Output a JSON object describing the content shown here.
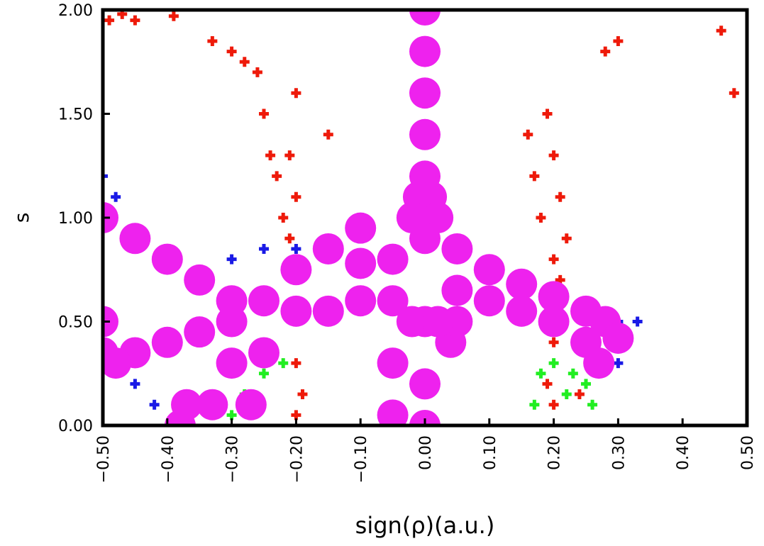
{
  "chart_data": {
    "type": "scatter",
    "xlabel": "sign(ρ)(a.u.)",
    "ylabel": "s",
    "xlim": [
      -0.5,
      0.5
    ],
    "ylim": [
      0,
      2
    ],
    "xticks": [
      {
        "value": -0.5,
        "label": "−0.50"
      },
      {
        "value": -0.4,
        "label": "−0.40"
      },
      {
        "value": -0.3,
        "label": "−0.30"
      },
      {
        "value": -0.2,
        "label": "−0.20"
      },
      {
        "value": -0.1,
        "label": "−0.10"
      },
      {
        "value": 0,
        "label": "0.00"
      },
      {
        "value": 0.1,
        "label": "0.10"
      },
      {
        "value": 0.2,
        "label": "0.20"
      },
      {
        "value": 0.3,
        "label": "0.30"
      },
      {
        "value": 0.4,
        "label": "0.40"
      },
      {
        "value": 0.5,
        "label": "0.50"
      }
    ],
    "yticks": [
      {
        "value": 0,
        "label": "0.00"
      },
      {
        "value": 0.5,
        "label": "0.50"
      },
      {
        "value": 1,
        "label": "1.00"
      },
      {
        "value": 1.5,
        "label": "1.50"
      },
      {
        "value": 2,
        "label": "2.00"
      }
    ],
    "series": [
      {
        "color": "#1a1ae6",
        "marker": "cross",
        "x": [
          -0.5,
          -0.48,
          -0.45,
          -0.42,
          -0.3,
          -0.25,
          -0.2,
          0.3,
          0.33,
          0.3,
          -0.5
        ],
        "values": [
          1.2,
          1.1,
          0.2,
          0.1,
          0.8,
          0.85,
          0.85,
          0.5,
          0.5,
          0.3,
          0.3
        ]
      },
      {
        "color": "#22ee22",
        "marker": "cross",
        "x": [
          -0.3,
          -0.28,
          -0.25,
          -0.22,
          0.17,
          0.18,
          0.2,
          0.23,
          0.25,
          0.26,
          0.22
        ],
        "values": [
          0.05,
          0.15,
          0.25,
          0.3,
          0.1,
          0.25,
          0.3,
          0.25,
          0.2,
          0.1,
          0.15
        ]
      },
      {
        "color": "#ee1a0a",
        "marker": "cross",
        "x": [
          -0.49,
          -0.47,
          -0.45,
          -0.39,
          -0.33,
          -0.3,
          -0.28,
          -0.26,
          -0.25,
          -0.24,
          -0.23,
          -0.22,
          -0.21,
          -0.2,
          -0.2,
          -0.19,
          -0.2,
          -0.21,
          -0.2,
          -0.15,
          0.16,
          0.17,
          0.18,
          0.19,
          0.2,
          0.21,
          0.22,
          0.2,
          0.21,
          0.19,
          0.2,
          0.24,
          0.28,
          0.3,
          0.48,
          0.46,
          0.2
        ],
        "values": [
          1.95,
          1.98,
          1.95,
          1.97,
          1.85,
          1.8,
          1.75,
          1.7,
          1.5,
          1.3,
          1.2,
          1.0,
          0.9,
          1.6,
          0.3,
          0.15,
          0.05,
          1.3,
          1.1,
          1.4,
          1.4,
          1.2,
          1.0,
          1.5,
          1.3,
          1.1,
          0.9,
          0.8,
          0.7,
          0.2,
          0.1,
          0.15,
          1.8,
          1.85,
          1.6,
          1.9,
          0.4
        ]
      },
      {
        "color": "#ee22ee",
        "marker": "blob",
        "x": [
          0,
          0,
          0,
          0,
          0,
          0.01,
          -0.01,
          0.02,
          -0.02,
          0,
          0,
          0,
          0,
          0.05,
          0.1,
          0.15,
          0.2,
          0.25,
          0.28,
          0.3,
          0.05,
          0.1,
          0.15,
          0.2,
          0.25,
          0.27,
          0.04,
          0.05,
          -0.05,
          -0.1,
          -0.1,
          -0.15,
          -0.2,
          -0.25,
          -0.3,
          -0.35,
          -0.4,
          -0.45,
          -0.5,
          -0.5,
          -0.45,
          -0.4,
          -0.35,
          -0.3,
          -0.5,
          -0.48,
          -0.05,
          -0.05,
          -0.05,
          -0.15,
          -0.2,
          -0.25,
          -0.3,
          -0.33,
          -0.37,
          -0.38,
          -0.27,
          -0.1,
          -0.02,
          0.02
        ],
        "values": [
          2.0,
          1.8,
          1.6,
          1.4,
          1.2,
          1.1,
          1.1,
          1.0,
          1.0,
          0.9,
          0.5,
          0.2,
          0.0,
          0.85,
          0.75,
          0.68,
          0.62,
          0.55,
          0.5,
          0.42,
          0.65,
          0.6,
          0.55,
          0.5,
          0.4,
          0.3,
          0.4,
          0.5,
          0.8,
          0.78,
          0.95,
          0.85,
          0.75,
          0.6,
          0.5,
          0.45,
          0.4,
          0.35,
          0.35,
          0.5,
          0.9,
          0.8,
          0.7,
          0.6,
          1.0,
          0.3,
          0.6,
          0.3,
          0.05,
          0.55,
          0.55,
          0.35,
          0.3,
          0.1,
          0.1,
          0.0,
          0.1,
          0.6,
          0.5,
          0.5
        ]
      }
    ]
  }
}
